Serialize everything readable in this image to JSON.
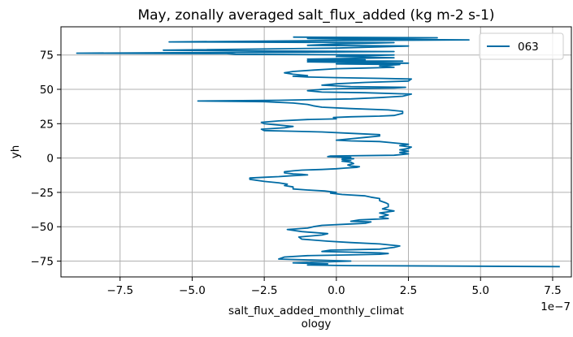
{
  "chart_data": {
    "type": "line",
    "title": "May, zonally averaged salt_flux_added (kg m-2 s-1)",
    "xlabel_lines": [
      "salt_flux_added_monthly_climat",
      "ology"
    ],
    "ylabel": "yh",
    "x_offset_label": "1e−7",
    "x_scale": 1e-07,
    "xlim": [
      -9.55,
      8.15
    ],
    "ylim": [
      -86.5,
      95.5
    ],
    "x_ticks": [
      -7.5,
      -5.0,
      -2.5,
      0.0,
      2.5,
      5.0,
      7.5
    ],
    "x_tick_labels": [
      "−7.5",
      "−5.0",
      "−2.5",
      "0.0",
      "2.5",
      "5.0",
      "7.5"
    ],
    "y_ticks": [
      -75,
      -50,
      -25,
      0,
      25,
      50,
      75
    ],
    "y_tick_labels": [
      "−75",
      "−50",
      "−25",
      "0",
      "25",
      "50",
      "75"
    ],
    "grid": true,
    "legend_position": "top-right",
    "colors": {
      "line": "#006ba4",
      "grid": "#b0b0b0",
      "axis": "#000000"
    },
    "series": [
      {
        "name": "063",
        "points": [
          [
            7.75,
            -79.0
          ],
          [
            0.5,
            -78.3
          ],
          [
            -1.0,
            -77.8
          ],
          [
            -0.3,
            -77.0
          ],
          [
            -1.5,
            -76.3
          ],
          [
            0.5,
            -75.0
          ],
          [
            -2.0,
            -73.5
          ],
          [
            -1.8,
            -72.0
          ],
          [
            -1.0,
            -71.0
          ],
          [
            0.5,
            -70.5
          ],
          [
            1.5,
            -70.0
          ],
          [
            1.8,
            -69.5
          ],
          [
            1.5,
            -69.0
          ],
          [
            -0.5,
            -68.0
          ],
          [
            -0.2,
            -67.0
          ],
          [
            1.5,
            -66.3
          ],
          [
            2.0,
            -65.0
          ],
          [
            2.2,
            -64.0
          ],
          [
            1.5,
            -62.5
          ],
          [
            0.5,
            -61.5
          ],
          [
            -0.3,
            -60.5
          ],
          [
            -1.2,
            -59.0
          ],
          [
            -1.3,
            -57.5
          ],
          [
            -0.5,
            -56.0
          ],
          [
            -0.3,
            -55.0
          ],
          [
            -1.2,
            -53.5
          ],
          [
            -1.7,
            -52.0
          ],
          [
            -1.0,
            -51.0
          ],
          [
            -0.8,
            -50.0
          ],
          [
            -0.5,
            -49.0
          ],
          [
            0.5,
            -48.0
          ],
          [
            1.0,
            -47.5
          ],
          [
            1.2,
            -46.5
          ],
          [
            0.5,
            -46.0
          ],
          [
            0.8,
            -45.0
          ],
          [
            1.8,
            -44.0
          ],
          [
            1.5,
            -43.0
          ],
          [
            1.8,
            -41.5
          ],
          [
            1.5,
            -40.0
          ],
          [
            2.0,
            -38.5
          ],
          [
            1.6,
            -37.0
          ],
          [
            1.8,
            -35.5
          ],
          [
            1.8,
            -34.5
          ],
          [
            1.8,
            -33.5
          ],
          [
            1.7,
            -32.5
          ],
          [
            1.5,
            -31.0
          ],
          [
            1.5,
            -29.5
          ],
          [
            1.2,
            -28.5
          ],
          [
            1.0,
            -27.5
          ],
          [
            0.2,
            -26.5
          ],
          [
            -0.2,
            -25.5
          ],
          [
            0.0,
            -25.0
          ],
          [
            -0.4,
            -24.0
          ],
          [
            -1.0,
            -23.3
          ],
          [
            -1.5,
            -22.5
          ],
          [
            -1.5,
            -21.0
          ],
          [
            -1.8,
            -20.0
          ],
          [
            -1.7,
            -19.0
          ],
          [
            -2.0,
            -18.0
          ],
          [
            -2.5,
            -17.0
          ],
          [
            -3.0,
            -15.5
          ],
          [
            -3.0,
            -14.5
          ],
          [
            -2.5,
            -14.0
          ],
          [
            -2.0,
            -13.5
          ],
          [
            -1.5,
            -12.8
          ],
          [
            -1.0,
            -12.3
          ],
          [
            -1.2,
            -11.8
          ],
          [
            -1.5,
            -11.5
          ],
          [
            -1.8,
            -10.8
          ],
          [
            -1.8,
            -10.0
          ],
          [
            -1.5,
            -9.3
          ],
          [
            -1.2,
            -8.8
          ],
          [
            -0.5,
            -8.3
          ],
          [
            0.0,
            -7.8
          ],
          [
            0.3,
            -7.3
          ],
          [
            0.7,
            -6.8
          ],
          [
            0.8,
            -6.3
          ],
          [
            0.5,
            -5.8
          ],
          [
            0.4,
            -5.0
          ],
          [
            0.6,
            -4.0
          ],
          [
            0.5,
            -3.0
          ],
          [
            0.2,
            -2.3
          ],
          [
            0.5,
            -1.5
          ],
          [
            0.2,
            -1.0
          ],
          [
            0.6,
            -0.5
          ],
          [
            0.2,
            0.0
          ],
          [
            0.5,
            0.5
          ],
          [
            -0.3,
            1.0
          ],
          [
            -0.2,
            1.5
          ],
          [
            2.0,
            2.0
          ],
          [
            2.5,
            3.0
          ],
          [
            2.2,
            4.0
          ],
          [
            2.5,
            5.0
          ],
          [
            2.2,
            6.0
          ],
          [
            2.5,
            7.0
          ],
          [
            2.6,
            8.0
          ],
          [
            2.2,
            9.0
          ],
          [
            2.5,
            10.0
          ],
          [
            2.0,
            11.0
          ],
          [
            1.5,
            12.0
          ],
          [
            0.5,
            12.5
          ],
          [
            0.0,
            13.0
          ],
          [
            0.5,
            14.0
          ],
          [
            1.0,
            15.0
          ],
          [
            1.5,
            16.0
          ],
          [
            1.5,
            17.0
          ],
          [
            0.5,
            18.0
          ],
          [
            -0.5,
            19.0
          ],
          [
            -1.5,
            19.5
          ],
          [
            -2.5,
            20.0
          ],
          [
            -2.6,
            21.0
          ],
          [
            -1.8,
            22.0
          ],
          [
            -1.5,
            23.0
          ],
          [
            -2.0,
            24.0
          ],
          [
            -2.5,
            25.0
          ],
          [
            -2.6,
            26.0
          ],
          [
            -2.0,
            27.0
          ],
          [
            -1.0,
            28.0
          ],
          [
            0.0,
            28.5
          ],
          [
            -0.1,
            29.5
          ],
          [
            0.5,
            30.0
          ],
          [
            1.5,
            30.5
          ],
          [
            2.0,
            31.0
          ],
          [
            2.3,
            32.5
          ],
          [
            2.3,
            34.0
          ],
          [
            1.8,
            35.0
          ],
          [
            0.5,
            36.0
          ],
          [
            -0.5,
            37.0
          ],
          [
            -0.8,
            38.0
          ],
          [
            -1.0,
            39.0
          ],
          [
            -1.5,
            40.0
          ],
          [
            -2.5,
            41.0
          ],
          [
            -4.8,
            41.5
          ],
          [
            -2.0,
            42.0
          ],
          [
            0.5,
            43.0
          ],
          [
            1.5,
            44.0
          ],
          [
            2.3,
            45.0
          ],
          [
            2.6,
            46.5
          ],
          [
            1.0,
            47.5
          ],
          [
            -0.5,
            48.0
          ],
          [
            -1.0,
            49.0
          ],
          [
            -0.5,
            50.0
          ],
          [
            0.2,
            50.5
          ],
          [
            2.0,
            51.0
          ],
          [
            2.4,
            51.5
          ],
          [
            0.5,
            52.0
          ],
          [
            -0.5,
            53.0
          ],
          [
            0.0,
            54.0
          ],
          [
            1.0,
            55.0
          ],
          [
            2.5,
            56.0
          ],
          [
            2.6,
            57.5
          ],
          [
            1.5,
            58.0
          ],
          [
            0.0,
            58.5
          ],
          [
            -1.0,
            59.0
          ],
          [
            -1.5,
            59.5
          ],
          [
            -1.0,
            60.0
          ],
          [
            -1.5,
            61.0
          ],
          [
            -1.8,
            62.0
          ],
          [
            -1.5,
            63.0
          ],
          [
            -0.8,
            64.0
          ],
          [
            0.0,
            65.0
          ],
          [
            1.0,
            65.5
          ],
          [
            2.0,
            66.0
          ],
          [
            1.5,
            67.0
          ],
          [
            2.2,
            68.0
          ],
          [
            0.0,
            68.5
          ],
          [
            2.5,
            69.0
          ],
          [
            -1.0,
            70.0
          ],
          [
            2.3,
            70.5
          ],
          [
            -1.0,
            71.0
          ],
          [
            1.0,
            71.5
          ],
          [
            -1.0,
            72.0
          ],
          [
            2.0,
            73.0
          ],
          [
            0.0,
            74.0
          ],
          [
            2.0,
            75.0
          ],
          [
            -3.5,
            75.5
          ],
          [
            -3.8,
            76.0
          ],
          [
            -9.0,
            76.3
          ],
          [
            -5.0,
            76.7
          ],
          [
            -1.0,
            77.0
          ],
          [
            2.0,
            77.5
          ],
          [
            -3.0,
            78.0
          ],
          [
            -6.0,
            78.5
          ],
          [
            0.0,
            80.0
          ],
          [
            2.5,
            81.5
          ],
          [
            -1.0,
            82.0
          ],
          [
            0.0,
            83.0
          ],
          [
            2.0,
            84.0
          ],
          [
            -5.8,
            84.5
          ],
          [
            0.0,
            85.5
          ],
          [
            4.6,
            86.0
          ],
          [
            0.5,
            86.5
          ],
          [
            -1.0,
            87.0
          ],
          [
            3.5,
            87.5
          ],
          [
            -1.5,
            88.0
          ]
        ]
      }
    ]
  }
}
